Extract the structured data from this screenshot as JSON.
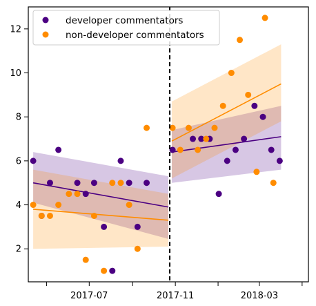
{
  "chart_data": {
    "type": "scatter",
    "title": "",
    "xlabel": "",
    "ylabel": "",
    "x_ticks": [
      "2017-07",
      "2017-11",
      "2018-03"
    ],
    "y_ticks": [
      2,
      4,
      6,
      8,
      10,
      12
    ],
    "ylim": [
      0.5,
      13.0
    ],
    "xlim": [
      "2017-04-05",
      "2018-05-10"
    ],
    "grid": false,
    "legend_position": "top-left",
    "vertical_marker": "2017-10-24",
    "series": [
      {
        "name": "developer commentators",
        "color": "#4b0082",
        "points": [
          [
            "2017-04-12",
            6.0
          ],
          [
            "2017-04-24",
            3.5
          ],
          [
            "2017-05-06",
            5.0
          ],
          [
            "2017-05-18",
            6.5
          ],
          [
            "2017-06-14",
            5.0
          ],
          [
            "2017-06-26",
            4.5
          ],
          [
            "2017-07-08",
            5.0
          ],
          [
            "2017-07-22",
            3.0
          ],
          [
            "2017-08-03",
            1.0
          ],
          [
            "2017-08-15",
            6.0
          ],
          [
            "2017-08-27",
            5.0
          ],
          [
            "2017-09-08",
            3.0
          ],
          [
            "2017-09-21",
            5.0
          ],
          [
            "2017-10-28",
            6.5
          ],
          [
            "2017-11-26",
            7.0
          ],
          [
            "2017-12-08",
            7.0
          ],
          [
            "2017-12-20",
            7.0
          ],
          [
            "2018-01-02",
            4.5
          ],
          [
            "2018-01-14",
            6.0
          ],
          [
            "2018-01-26",
            6.5
          ],
          [
            "2018-02-07",
            7.0
          ],
          [
            "2018-02-22",
            8.5
          ],
          [
            "2018-03-06",
            8.0
          ],
          [
            "2018-03-18",
            6.5
          ],
          [
            "2018-03-30",
            6.0
          ]
        ],
        "fits": [
          {
            "x": [
              "2017-04-12",
              "2017-10-22"
            ],
            "y": [
              5.0,
              3.9
            ],
            "lower": [
              4.1,
              2.45
            ],
            "upper": [
              6.4,
              5.3
            ]
          },
          {
            "x": [
              "2017-10-27",
              "2018-04-01"
            ],
            "y": [
              6.4,
              7.1
            ],
            "lower": [
              5.0,
              5.6
            ],
            "upper": [
              7.4,
              8.5
            ]
          }
        ]
      },
      {
        "name": "non-developer commentators",
        "color": "#ff8c00",
        "points": [
          [
            "2017-04-12",
            4.0
          ],
          [
            "2017-04-24",
            3.5
          ],
          [
            "2017-05-06",
            3.5
          ],
          [
            "2017-05-18",
            4.0
          ],
          [
            "2017-06-02",
            4.5
          ],
          [
            "2017-06-14",
            4.5
          ],
          [
            "2017-06-26",
            1.5
          ],
          [
            "2017-07-08",
            3.5
          ],
          [
            "2017-07-22",
            1.0
          ],
          [
            "2017-08-03",
            5.0
          ],
          [
            "2017-08-15",
            5.0
          ],
          [
            "2017-08-27",
            4.0
          ],
          [
            "2017-09-08",
            2.0
          ],
          [
            "2017-09-21",
            7.5
          ],
          [
            "2017-10-28",
            7.5
          ],
          [
            "2017-11-08",
            6.5
          ],
          [
            "2017-11-20",
            7.5
          ],
          [
            "2017-12-03",
            6.5
          ],
          [
            "2017-12-15",
            7.0
          ],
          [
            "2017-12-27",
            7.5
          ],
          [
            "2018-01-08",
            8.5
          ],
          [
            "2018-01-20",
            10.0
          ],
          [
            "2018-02-01",
            11.5
          ],
          [
            "2018-02-13",
            9.0
          ],
          [
            "2018-02-25",
            5.5
          ],
          [
            "2018-03-09",
            12.5
          ],
          [
            "2018-03-21",
            5.0
          ]
        ],
        "fits": [
          {
            "x": [
              "2017-04-12",
              "2017-10-22"
            ],
            "y": [
              3.8,
              3.3
            ],
            "lower": [
              2.0,
              2.1
            ],
            "upper": [
              5.6,
              4.5
            ]
          },
          {
            "x": [
              "2017-10-27",
              "2018-04-01"
            ],
            "y": [
              6.9,
              9.5
            ],
            "lower": [
              5.2,
              7.8
            ],
            "upper": [
              8.7,
              11.3
            ]
          }
        ]
      }
    ]
  }
}
